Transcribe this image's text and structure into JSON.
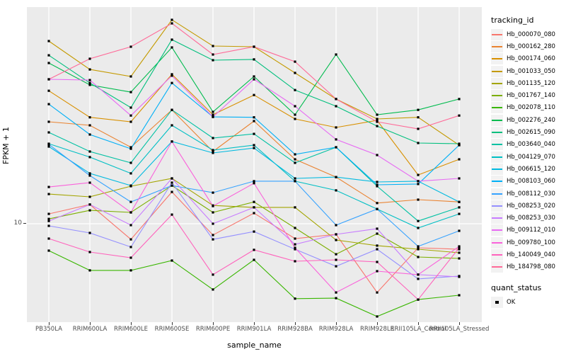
{
  "theme": {
    "panel_bg": "#EBEBEB",
    "grid_color": "#FFFFFF",
    "tick_text_color": "#4D4D4D",
    "point_color": "#000000",
    "legend_key_bg": "#F2F2F2"
  },
  "axes": {
    "y_title": "FPKM + 1",
    "x_title": "sample_name",
    "y_tick_label": "10"
  },
  "legend": {
    "tracking_title": "tracking_id",
    "quant_title": "quant_status",
    "quant_items": [
      {
        "label": "OK",
        "marker": "black-square"
      }
    ]
  },
  "chart_data": {
    "type": "line",
    "title": "",
    "xlabel": "sample_name",
    "ylabel": "FPKM + 1",
    "x_categories": [
      "PB350LA",
      "RRIM600LA",
      "RRIM600LE",
      "RRIM600SE",
      "RRIM600PE",
      "RRIM901LA",
      "RRIM928BA",
      "RRIM928LA",
      "RRIM928LE",
      "RRII105LA_Control",
      "RRII105LA_Stressed"
    ],
    "y_scale": "log10",
    "y_ticks": [
      10
    ],
    "ylim_approx": [
      1.1,
      1100
    ],
    "grid": "major-x-and-y10",
    "legend_position": "right",
    "point_marker": "filled-black-square",
    "series": [
      {
        "name": "Hb_000070_080",
        "color": "#F8766D",
        "values": [
          12.4,
          15.2,
          7.11,
          20,
          7.81,
          12.6,
          7.23,
          7.93,
          2.23,
          5.91,
          5.73
        ]
      },
      {
        "name": "Hb_000162_280",
        "color": "#EA8331",
        "values": [
          92.5,
          85.7,
          53.1,
          120,
          48.4,
          94,
          40.8,
          27.7,
          15.7,
          16.9,
          16.1
        ]
      },
      {
        "name": "Hb_000174_060",
        "color": "#D89000",
        "values": [
          182,
          102,
          92.5,
          261,
          108,
          166,
          98.4,
          81.8,
          95.5,
          29,
          40.8
        ]
      },
      {
        "name": "Hb_001033_050",
        "color": "#C49A00",
        "values": [
          539,
          290,
          249,
          857,
          484,
          476,
          269,
          152,
          98.4,
          102,
          55.6
        ]
      },
      {
        "name": "Hb_001135_120",
        "color": "#A3A500",
        "values": [
          19.1,
          18,
          22.7,
          26.9,
          14.9,
          14.3,
          14.3,
          7.01,
          6.2,
          5.73,
          5.31
        ]
      },
      {
        "name": "Hb_001767_140",
        "color": "#7CAE00",
        "values": [
          11.1,
          13.4,
          12.8,
          23,
          12.8,
          16.1,
          9.12,
          5.14,
          8.05,
          4.84,
          4.69
        ]
      },
      {
        "name": "Hb_002078_110",
        "color": "#39B600",
        "values": [
          5.56,
          3.61,
          3.61,
          4.48,
          2.38,
          4.55,
          1.95,
          1.97,
          1.32,
          1.91,
          2.1
        ]
      },
      {
        "name": "Hb_002276_240",
        "color": "#00BB4E",
        "values": [
          334,
          207,
          177,
          469,
          115,
          249,
          108,
          402,
          108,
          120,
          152
        ]
      },
      {
        "name": "Hb_002615_090",
        "color": "#00BF7D",
        "values": [
          395,
          216,
          126,
          556,
          355,
          361,
          185,
          130,
          84.3,
          58.2,
          57.3
        ]
      },
      {
        "name": "Hb_003640_040",
        "color": "#00C1A3",
        "values": [
          73.4,
          48.4,
          37.8,
          120,
          64.9,
          71.1,
          37.8,
          53.1,
          22.7,
          10.6,
          14.3
        ]
      },
      {
        "name": "Hb_004129_070",
        "color": "#00BFC4",
        "values": [
          57.3,
          42.8,
          30,
          85.7,
          49.9,
          55.6,
          25.3,
          20.7,
          13.8,
          9.12,
          12.4
        ]
      },
      {
        "name": "Hb_006615_120",
        "color": "#00BAE0",
        "values": [
          53.9,
          30,
          23,
          60.1,
          46.9,
          52.2,
          26.9,
          27.7,
          24.9,
          25.3,
          16.1
        ]
      },
      {
        "name": "Hb_008103_060",
        "color": "#00B0F6",
        "values": [
          136,
          70.1,
          51.4,
          216,
          103,
          102,
          45.5,
          53.1,
          23.4,
          23.8,
          55.6
        ]
      },
      {
        "name": "Hb_008112_030",
        "color": "#35A2FF",
        "values": [
          56.5,
          28.6,
          16.1,
          23,
          19.7,
          25.3,
          25.3,
          9.7,
          13.8,
          6.1,
          8.57
        ]
      },
      {
        "name": "Hb_008253_020",
        "color": "#9590FF",
        "values": [
          9.55,
          8.18,
          6.01,
          24.5,
          7.11,
          8.43,
          5.73,
          3.95,
          5.73,
          3,
          3.19
        ]
      },
      {
        "name": "Hb_008253_030",
        "color": "#C77CFF",
        "values": [
          10.6,
          15.2,
          9.7,
          26.9,
          10,
          14.3,
          6.38,
          7.93,
          8.98,
          3.29,
          3.14
        ]
      },
      {
        "name": "Hb_009112_010",
        "color": "#E76BF3",
        "values": [
          234,
          230,
          106,
          253,
          103,
          234,
          130,
          63,
          44.8,
          25.3,
          26.9
        ]
      },
      {
        "name": "Hb_009780_100",
        "color": "#FA62DB",
        "values": [
          22.3,
          24.5,
          12.8,
          60.1,
          14.7,
          24.2,
          5.91,
          2.23,
          3.55,
          3.29,
          6.1
        ]
      },
      {
        "name": "Hb_140049_040",
        "color": "#FF62BC",
        "values": [
          7.23,
          5.39,
          4.76,
          12.2,
          3.29,
          5.65,
          4.41,
          4.55,
          4.34,
          1.91,
          5.91
        ]
      },
      {
        "name": "Hb_184798_080",
        "color": "#FF6A98",
        "values": [
          234,
          366,
          476,
          793,
          402,
          476,
          344,
          152,
          92.5,
          79.3,
          106
        ]
      }
    ]
  }
}
